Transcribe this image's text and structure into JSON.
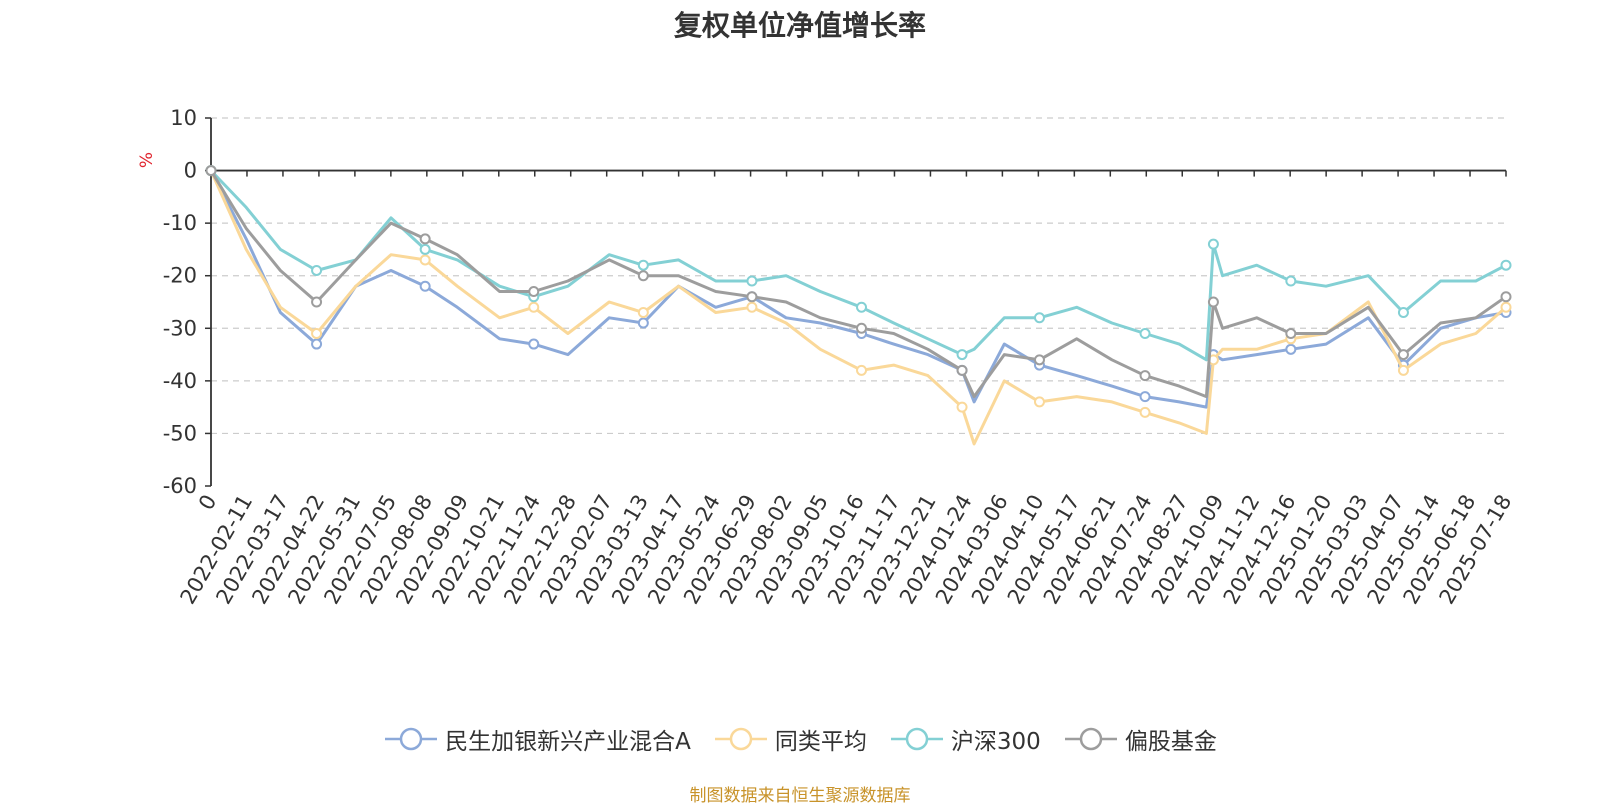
{
  "chart_data": {
    "type": "line",
    "title": "复权单位净值增长率",
    "ylabel": "%",
    "ylim": [
      -60,
      10
    ],
    "yticks": [
      10,
      0,
      -10,
      -20,
      -30,
      -40,
      -50,
      -60
    ],
    "grid": true,
    "legend_position": "bottom",
    "x_tick_labels": [
      "0",
      "2022-02-11",
      "2022-03-17",
      "2022-04-22",
      "2022-05-31",
      "2022-07-05",
      "2022-08-08",
      "2022-09-09",
      "2022-10-21",
      "2022-11-24",
      "2022-12-28",
      "2023-02-07",
      "2023-03-13",
      "2023-04-17",
      "2023-05-24",
      "2023-06-29",
      "2023-08-02",
      "2023-09-05",
      "2023-10-16",
      "2023-11-17",
      "2023-12-21",
      "2024-01-24",
      "2024-03-06",
      "2024-04-10",
      "2024-05-17",
      "2024-06-21",
      "2024-07-24",
      "2024-08-27",
      "2024-10-09",
      "2024-11-12",
      "2024-12-16",
      "2025-01-20",
      "2025-03-03",
      "2025-04-07",
      "2025-05-14",
      "2025-06-18",
      "2025-07-18"
    ],
    "x": [
      "2022-01-07",
      "2022-02-11",
      "2022-03-17",
      "2022-04-22",
      "2022-05-31",
      "2022-07-05",
      "2022-08-08",
      "2022-09-09",
      "2022-10-21",
      "2022-11-24",
      "2022-12-28",
      "2023-02-07",
      "2023-03-13",
      "2023-04-17",
      "2023-05-24",
      "2023-06-29",
      "2023-08-02",
      "2023-09-05",
      "2023-10-16",
      "2023-11-17",
      "2023-12-21",
      "2024-01-24",
      "2024-02-05",
      "2024-03-06",
      "2024-04-10",
      "2024-05-17",
      "2024-06-21",
      "2024-07-24",
      "2024-08-27",
      "2024-09-23",
      "2024-09-30",
      "2024-10-09",
      "2024-11-12",
      "2024-12-16",
      "2025-01-20",
      "2025-03-03",
      "2025-04-07",
      "2025-05-14",
      "2025-06-18",
      "2025-07-18"
    ],
    "series": [
      {
        "name": "民生加银新兴产业混合A",
        "color": "#8ca9d9",
        "values": [
          0,
          -13,
          -27,
          -33,
          -22,
          -19,
          -22,
          -26,
          -32,
          -33,
          -35,
          -28,
          -29,
          -22,
          -26,
          -24,
          -28,
          -29,
          -31,
          -33,
          -35,
          -38,
          -44,
          -33,
          -37,
          -39,
          -41,
          -43,
          -44,
          -45,
          -35,
          -36,
          -35,
          -34,
          -33,
          -28,
          -37,
          -30,
          -28,
          -27
        ]
      },
      {
        "name": "同类平均",
        "color": "#fad899",
        "values": [
          0,
          -15,
          -26,
          -31,
          -22,
          -16,
          -17,
          -22,
          -28,
          -26,
          -31,
          -25,
          -27,
          -22,
          -27,
          -26,
          -29,
          -34,
          -38,
          -37,
          -39,
          -45,
          -52,
          -40,
          -44,
          -43,
          -44,
          -46,
          -48,
          -50,
          -36,
          -34,
          -34,
          -32,
          -31,
          -25,
          -38,
          -33,
          -31,
          -26
        ]
      },
      {
        "name": "沪深300",
        "color": "#83d0d4",
        "values": [
          0,
          -7,
          -15,
          -19,
          -17,
          -9,
          -15,
          -17,
          -22,
          -24,
          -22,
          -16,
          -18,
          -17,
          -21,
          -21,
          -20,
          -23,
          -26,
          -29,
          -32,
          -35,
          -34,
          -28,
          -28,
          -26,
          -29,
          -31,
          -33,
          -36,
          -14,
          -20,
          -18,
          -21,
          -22,
          -20,
          -27,
          -21,
          -21,
          -18
        ]
      },
      {
        "name": "偏股基金",
        "color": "#9d9d9d",
        "values": [
          0,
          -11,
          -19,
          -25,
          -17,
          -10,
          -13,
          -16,
          -23,
          -23,
          -21,
          -17,
          -20,
          -20,
          -23,
          -24,
          -25,
          -28,
          -30,
          -31,
          -34,
          -38,
          -43,
          -35,
          -36,
          -32,
          -36,
          -39,
          -41,
          -43,
          -25,
          -30,
          -28,
          -31,
          -31,
          -26,
          -35,
          -29,
          -28,
          -24
        ]
      }
    ]
  },
  "source_note": "制图数据来自恒生聚源数据库"
}
